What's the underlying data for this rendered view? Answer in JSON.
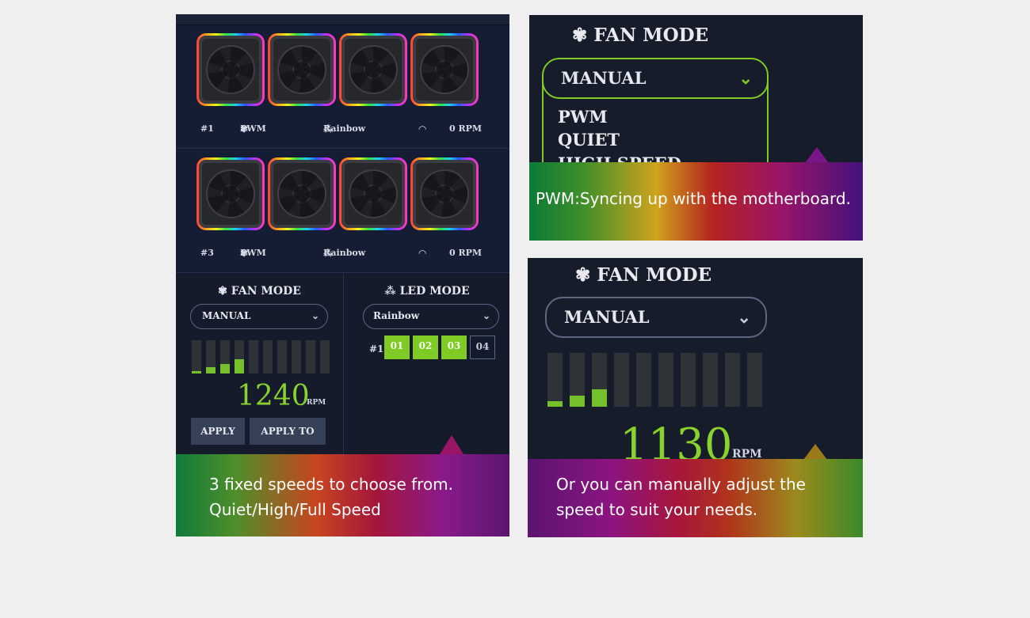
{
  "left": {
    "fan_groups": [
      {
        "index": "#1",
        "mode": "PWM",
        "led": "Rainbow",
        "rpm": "0 RPM"
      },
      {
        "index": "#3",
        "mode": "PWM",
        "led": "Rainbow",
        "rpm": "0 RPM"
      }
    ],
    "fan_mode": {
      "title": "FAN MODE",
      "selected": "MANUAL",
      "bars_total": 10,
      "bar_levels": [
        0.08,
        0.18,
        0.28,
        0.42,
        0,
        0,
        0,
        0,
        0,
        0
      ],
      "rpm_value": "1240",
      "rpm_unit": "RPM",
      "apply_label": "APPLY",
      "apply_all_label": "APPLY TO ALL"
    },
    "led_mode": {
      "title": "LED MODE",
      "selected": "Rainbow",
      "group_label": "#1",
      "chips": [
        {
          "label": "01",
          "active": true
        },
        {
          "label": "02",
          "active": true
        },
        {
          "label": "03",
          "active": true
        },
        {
          "label": "04",
          "active": false
        }
      ]
    },
    "caption": [
      "3 fixed speeds to choose from.",
      "Quiet/High/Full Speed"
    ]
  },
  "top_right": {
    "title": "FAN MODE",
    "selected": "MANUAL",
    "options": [
      "PWM",
      "QUIET",
      "HIGH SPEED"
    ],
    "caption": "PWM:Syncing up with the motherboard."
  },
  "bottom_right": {
    "title": "FAN MODE",
    "selected": "MANUAL",
    "bars_total": 10,
    "bar_levels": [
      0.1,
      0.2,
      0.32,
      0,
      0,
      0,
      0,
      0,
      0,
      0
    ],
    "rpm_value": "1130",
    "rpm_unit": "RPM",
    "caption": [
      "Or you can manually adjust the",
      "speed to suit your needs."
    ]
  },
  "colors": {
    "accent_green": "#7fca24",
    "panel_bg": "#161c29",
    "page_bg": "#efefef"
  }
}
